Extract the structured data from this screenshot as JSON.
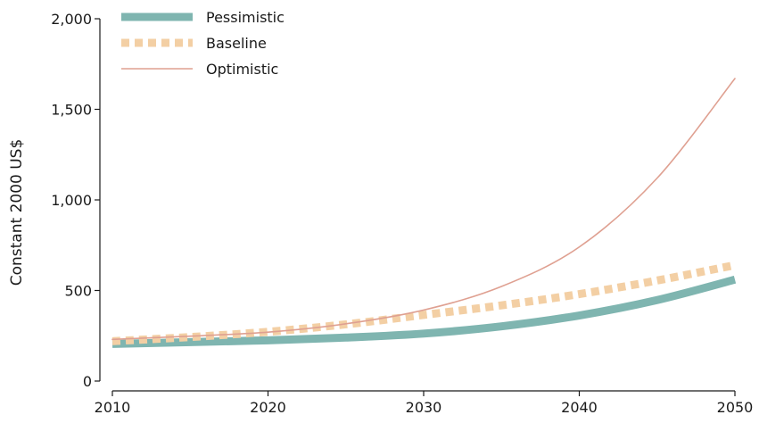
{
  "chart_data": {
    "type": "line",
    "title": "",
    "xlabel": "",
    "ylabel": "Constant 2000 US$",
    "xlim": [
      2010,
      2050
    ],
    "ylim": [
      0,
      2000
    ],
    "x": [
      2010,
      2015,
      2020,
      2025,
      2030,
      2035,
      2040,
      2045,
      2050
    ],
    "x_ticks": [
      2010,
      2020,
      2030,
      2040,
      2050
    ],
    "x_tick_labels": [
      "2010",
      "2020",
      "2030",
      "2040",
      "2050"
    ],
    "y_ticks": [
      0,
      500,
      1000,
      1500,
      2000
    ],
    "y_tick_labels": [
      "0",
      "500",
      "1,000",
      "1,500",
      "2,000"
    ],
    "grid": false,
    "legend_position": "top-left",
    "series": [
      {
        "name": "Pessimistic",
        "color": "#7fb5b0",
        "style": "thick solid",
        "values": [
          205,
          215,
          225,
          240,
          262,
          302,
          362,
          447,
          560
        ]
      },
      {
        "name": "Baseline",
        "color": "#f3cfa4",
        "style": "thick dotted",
        "values": [
          220,
          243,
          272,
          313,
          365,
          418,
          480,
          555,
          640
        ]
      },
      {
        "name": "Optimistic",
        "color": "#dfa091",
        "style": "thin solid",
        "values": [
          230,
          248,
          270,
          316,
          392,
          522,
          740,
          1120,
          1670
        ]
      }
    ]
  }
}
